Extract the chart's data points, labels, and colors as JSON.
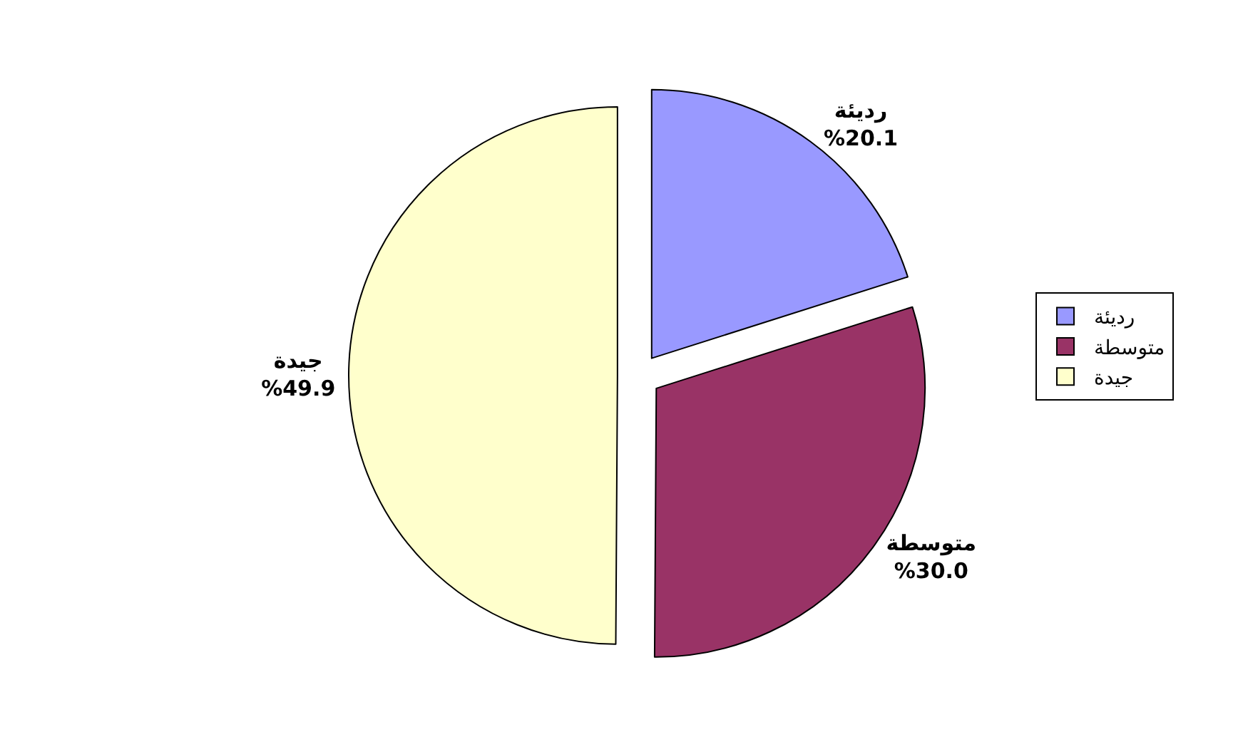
{
  "chart_data": {
    "type": "pie",
    "categories": [
      "رديئة",
      "متوسطة",
      "جيدة"
    ],
    "values": [
      20.1,
      30.0,
      49.9
    ],
    "value_labels": [
      "%20.1",
      "%30.0",
      "%49.9"
    ],
    "colors": [
      "#9999ff",
      "#993366",
      "#ffffcc"
    ],
    "legend": "right"
  }
}
